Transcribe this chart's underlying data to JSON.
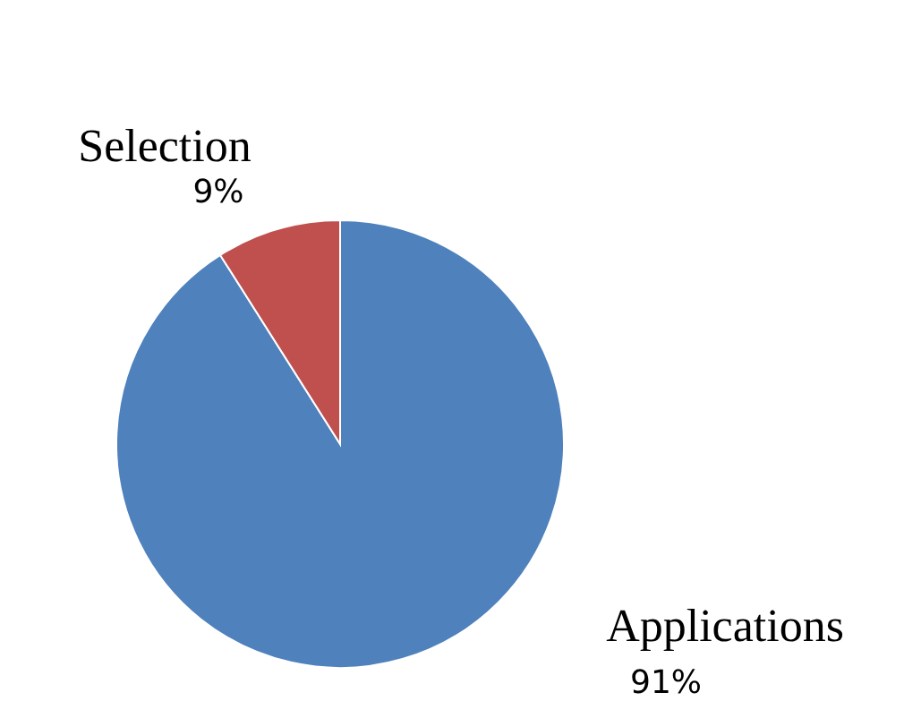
{
  "chart_data": {
    "type": "pie",
    "categories": [
      "Applications",
      "Selection"
    ],
    "values": [
      91,
      9
    ],
    "colors": [
      "#4f81bd",
      "#c0504d"
    ],
    "value_labels": [
      "91%",
      "9%"
    ]
  }
}
